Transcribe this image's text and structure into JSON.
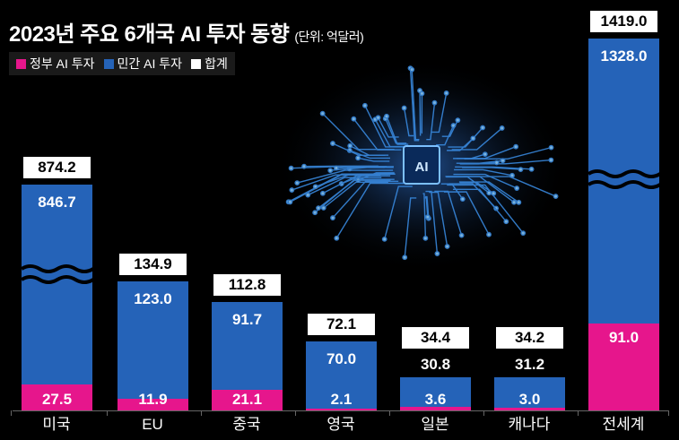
{
  "chart_data": {
    "type": "bar",
    "stacked": true,
    "title": "2023년 주요 6개국 AI 투자 동향",
    "unit": "(단위: 억달러)",
    "categories": [
      "미국",
      "EU",
      "중국",
      "영국",
      "일본",
      "캐나다",
      "전세계"
    ],
    "series": [
      {
        "name": "정부 AI 투자",
        "color": "#e6168c",
        "values": [
          27.5,
          11.9,
          21.1,
          2.1,
          3.6,
          3.0,
          91.0
        ],
        "labels": [
          "27.5",
          "11.9",
          "21.1",
          "2.1",
          "3.6",
          "3.0",
          "91.0"
        ]
      },
      {
        "name": "민간 AI 투자",
        "color": "#2563b8",
        "values": [
          846.7,
          123.0,
          91.7,
          70.0,
          30.8,
          31.2,
          1328.0
        ],
        "labels": [
          "846.7",
          "123.0",
          "91.7",
          "70.0",
          "30.8",
          "31.2",
          "1328.0"
        ]
      }
    ],
    "totals": {
      "name": "합계",
      "color": "#ffffff",
      "values": [
        874.2,
        134.9,
        112.8,
        72.1,
        34.4,
        34.2,
        1419.0
      ],
      "labels": [
        "874.2",
        "134.9",
        "112.8",
        "72.1",
        "34.4",
        "34.2",
        "1419.0"
      ]
    },
    "axis_break": [
      "미국",
      "전세계"
    ],
    "grid": false,
    "legend_position": "top-left"
  }
}
